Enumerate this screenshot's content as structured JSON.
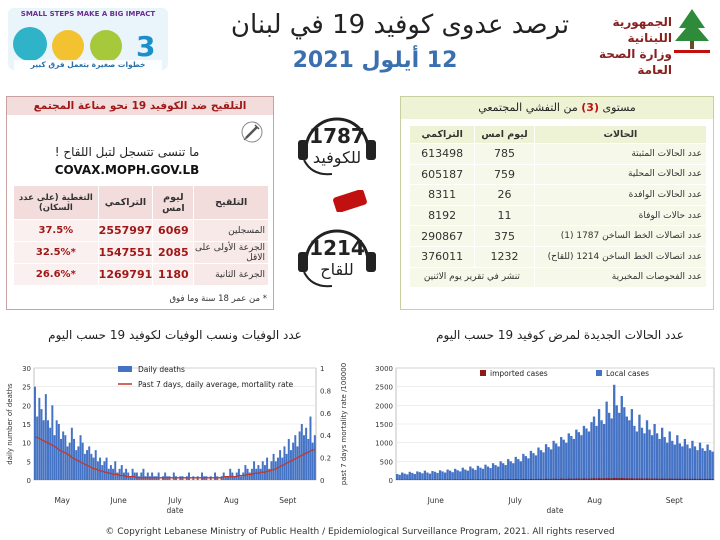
{
  "header": {
    "title": "ترصد عدوى كوفيد 19 في لبنان",
    "date": "12 أيلول 2021",
    "ministry_line1": "الجمهورية اللبنانية",
    "ministry_line2": "وزارة الصحة العامة",
    "campaign_top": "SMALL STEPS MAKE A BIG IMPACT",
    "campaign_bottom": "خطوات صغيرة بتعمل فرق كبير"
  },
  "vaccination": {
    "heading": "التلقيح ضد الكوفيد 19  نحو مناعة المجتمع",
    "register_text": "ما تنسى تتسجل لتبل اللقاح !",
    "url": "COVAX.MOPH.GOV.LB",
    "columns": [
      "التلقيح",
      "ليوم امس",
      "التراكمي",
      "التغطية (على عدد السكان)"
    ],
    "rows": [
      {
        "label": "المسجلين",
        "yesterday": "6069",
        "cumulative": "2557997",
        "coverage": "37.5%"
      },
      {
        "label": "الجرعة الأولى على الاقل",
        "yesterday": "2085",
        "cumulative": "1547551",
        "coverage": "*32.5%"
      },
      {
        "label": "الجرعة الثانية",
        "yesterday": "1180",
        "cumulative": "1269791",
        "coverage": "*26.6%"
      }
    ],
    "footnote": "* من عمر 18 سنة وما فوق"
  },
  "hotlines": [
    {
      "number": "1787",
      "label": "للكوفيد"
    },
    {
      "number": "1214",
      "label": "للقاح"
    }
  ],
  "community": {
    "heading_pre": "مستوى",
    "heading_level": "(3)",
    "heading_post": "من التفشي المجتمعي",
    "columns": [
      "الحالات",
      "ليوم امس",
      "التراكمي"
    ],
    "rows": [
      {
        "label": "عدد الحالات المثبتة",
        "yesterday": "785",
        "cumulative": "613498"
      },
      {
        "label": "عدد الحالات المحلية",
        "yesterday": "759",
        "cumulative": "605187"
      },
      {
        "label": "عدد الحالات الوافدة",
        "yesterday": "26",
        "cumulative": "8311"
      },
      {
        "label": "عدد حالات الوفاة",
        "yesterday": "11",
        "cumulative": "8192"
      },
      {
        "label": "عدد اتصالات الخط الساخن 1787  (1)",
        "yesterday": "375",
        "cumulative": "290867"
      },
      {
        "label": "عدد اتصالات الخط الساخن 1214 (للقاح)",
        "yesterday": "1232",
        "cumulative": "376011"
      },
      {
        "label": "عدد الفحوصات المخبرية",
        "yesterday": "تنشر في تقرير يوم الاثنين",
        "cumulative": ""
      }
    ]
  },
  "copyright": "© Copyright Lebanese Ministry of Public Health / Epidemiological Surveillance Program, 2021. All rights reserved",
  "colors": {
    "bar": "#4472c4",
    "avg_line": "#c0392b",
    "vac_accent": "#a01818",
    "com_fill": "#eef3d6"
  },
  "chart_data": [
    {
      "type": "bar",
      "title": "عدد الوفيات ونسب الوفيات لكوفيد 19 حسب اليوم",
      "xlabel": "date",
      "ylabel": "daily number of deaths",
      "y2label": "past 7 days mortality rate /100000",
      "ylim": [
        0,
        30
      ],
      "y2lim": [
        0,
        1
      ],
      "yticks": [
        0,
        5,
        10,
        15,
        20,
        25,
        30
      ],
      "y2ticks": [
        0,
        0.2,
        0.4,
        0.6,
        0.8,
        1
      ],
      "month_labels": [
        "May",
        "June",
        "July",
        "Aug",
        "Sept"
      ],
      "legend": [
        "Daily deaths",
        "Past 7 days, daily average, mortality rate"
      ],
      "legend_position": "top-right",
      "series": [
        {
          "name": "Daily deaths",
          "values": [
            25,
            17,
            22,
            19,
            16,
            23,
            16,
            14,
            20,
            12,
            16,
            15,
            11,
            13,
            12,
            9,
            10,
            14,
            11,
            8,
            9,
            12,
            10,
            7,
            8,
            9,
            7,
            6,
            8,
            5,
            6,
            4,
            5,
            6,
            3,
            4,
            3,
            5,
            2,
            3,
            4,
            2,
            3,
            2,
            1,
            3,
            2,
            2,
            1,
            2,
            3,
            1,
            2,
            1,
            2,
            1,
            1,
            2,
            0,
            1,
            2,
            1,
            1,
            0,
            2,
            1,
            0,
            1,
            1,
            0,
            1,
            2,
            0,
            1,
            0,
            1,
            0,
            2,
            1,
            1,
            0,
            1,
            0,
            2,
            1,
            0,
            1,
            2,
            1,
            1,
            3,
            2,
            1,
            2,
            3,
            1,
            2,
            4,
            3,
            2,
            3,
            5,
            3,
            4,
            3,
            5,
            4,
            6,
            3,
            5,
            7,
            5,
            6,
            8,
            6,
            9,
            7,
            11,
            8,
            10,
            12,
            9,
            13,
            15,
            12,
            14,
            11,
            17,
            10,
            12
          ]
        },
        {
          "name": "Past 7 days, daily average, mortality rate",
          "values": [
            0.38,
            0.38,
            0.37,
            0.36,
            0.35,
            0.34,
            0.33,
            0.32,
            0.31,
            0.3,
            0.29,
            0.27,
            0.26,
            0.25,
            0.24,
            0.23,
            0.22,
            0.2,
            0.19,
            0.18,
            0.17,
            0.16,
            0.15,
            0.14,
            0.13,
            0.12,
            0.11,
            0.1,
            0.1,
            0.09,
            0.08,
            0.08,
            0.07,
            0.07,
            0.06,
            0.06,
            0.05,
            0.05,
            0.05,
            0.04,
            0.04,
            0.04,
            0.03,
            0.03,
            0.03,
            0.03,
            0.03,
            0.02,
            0.02,
            0.02,
            0.02,
            0.02,
            0.02,
            0.02,
            0.02,
            0.02,
            0.02,
            0.02,
            0.02,
            0.02,
            0.02,
            0.02,
            0.02,
            0.02,
            0.02,
            0.02,
            0.02,
            0.02,
            0.02,
            0.02,
            0.02,
            0.02,
            0.02,
            0.02,
            0.02,
            0.02,
            0.02,
            0.02,
            0.02,
            0.02,
            0.02,
            0.02,
            0.02,
            0.02,
            0.02,
            0.02,
            0.02,
            0.03,
            0.03,
            0.03,
            0.03,
            0.03,
            0.03,
            0.03,
            0.04,
            0.04,
            0.04,
            0.04,
            0.05,
            0.05,
            0.05,
            0.06,
            0.06,
            0.06,
            0.07,
            0.07,
            0.07,
            0.08,
            0.08,
            0.09,
            0.09,
            0.1,
            0.11,
            0.12,
            0.13,
            0.14,
            0.15,
            0.16,
            0.17,
            0.18,
            0.19,
            0.2,
            0.21,
            0.22,
            0.23,
            0.24,
            0.25,
            0.26,
            0.27,
            0.27
          ]
        }
      ]
    },
    {
      "type": "bar",
      "title": "عدد الحالات الجديدة لمرض كوفيد 19 حسب اليوم",
      "xlabel": "date",
      "ylim": [
        0,
        3000
      ],
      "yticks": [
        0,
        500,
        1000,
        1500,
        2000,
        2500,
        3000
      ],
      "month_labels": [
        "June",
        "July",
        "Aug",
        "Sept"
      ],
      "legend": [
        "imported cases",
        "Local cases"
      ],
      "legend_position": "top",
      "series": [
        {
          "name": "Local cases",
          "values": [
            160,
            140,
            200,
            170,
            150,
            220,
            190,
            160,
            230,
            210,
            180,
            250,
            200,
            170,
            240,
            220,
            190,
            260,
            230,
            200,
            280,
            250,
            210,
            300,
            260,
            230,
            330,
            280,
            250,
            360,
            310,
            270,
            380,
            330,
            300,
            410,
            360,
            320,
            450,
            400,
            360,
            500,
            450,
            400,
            560,
            500,
            450,
            620,
            560,
            500,
            700,
            640,
            580,
            780,
            720,
            660,
            870,
            800,
            740,
            960,
            880,
            820,
            1050,
            980,
            900,
            1150,
            1080,
            1000,
            1250,
            1180,
            1100,
            1350,
            1280,
            1200,
            1450,
            1380,
            1300,
            1550,
            1700,
            1450,
            1900,
            1600,
            1500,
            2100,
            1800,
            1650,
            2550,
            2000,
            1800,
            2250,
            1950,
            1700,
            1600,
            1900,
            1450,
            1300,
            1750,
            1400,
            1250,
            1600,
            1350,
            1200,
            1500,
            1250,
            1100,
            1400,
            1150,
            1000,
            1300,
            1050,
            950,
            1200,
            980,
            900,
            1100,
            950,
            850,
            1050,
            900,
            800,
            1000,
            850,
            780,
            950,
            800,
            760
          ]
        },
        {
          "name": "imported cases",
          "values": [
            8,
            6,
            10,
            7,
            9,
            12,
            8,
            7,
            10,
            9,
            8,
            11,
            9,
            8,
            12,
            10,
            9,
            13,
            11,
            9,
            14,
            12,
            10,
            15,
            12,
            11,
            16,
            13,
            12,
            17,
            14,
            12,
            18,
            15,
            13,
            19,
            16,
            14,
            20,
            17,
            15,
            22,
            18,
            16,
            24,
            20,
            18,
            26,
            22,
            19,
            28,
            24,
            21,
            30,
            26,
            23,
            32,
            28,
            25,
            34,
            30,
            27,
            36,
            32,
            28,
            38,
            33,
            30,
            40,
            35,
            31,
            42,
            37,
            33,
            44,
            39,
            35,
            46,
            48,
            40,
            50,
            45,
            42,
            52,
            48,
            44,
            55,
            50,
            46,
            53,
            49,
            45,
            44,
            47,
            41,
            38,
            45,
            40,
            37,
            43,
            39,
            35,
            41,
            37,
            34,
            40,
            36,
            32,
            38,
            34,
            31,
            36,
            33,
            30,
            35,
            32,
            29,
            34,
            31,
            28,
            33,
            30,
            27,
            32,
            29,
            26
          ]
        }
      ]
    }
  ]
}
